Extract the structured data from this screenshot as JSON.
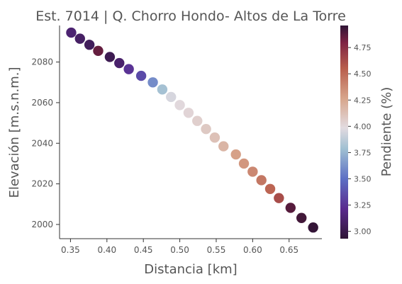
{
  "chart_data": {
    "type": "scatter",
    "title": "Est. 7014 | Q. Chorro Hondo- Altos de La Torre",
    "xlabel": "Distancia [km]",
    "ylabel": "Elevación [m.s.n.m.]",
    "xlim": [
      0.335,
      0.695
    ],
    "ylim": [
      1993,
      2098
    ],
    "xticks": [
      "0.35",
      "0.40",
      "0.45",
      "0.50",
      "0.55",
      "0.60",
      "0.65"
    ],
    "yticks": [
      "2000",
      "2020",
      "2040",
      "2060",
      "2080"
    ],
    "grid": false,
    "colorbar": {
      "label": "Pendiente (%)",
      "range": [
        2.93,
        4.96
      ],
      "ticks": [
        "3.00",
        "3.25",
        "3.50",
        "3.75",
        "4.00",
        "4.25",
        "4.50",
        "4.75"
      ],
      "colormap": "twilight_shifted"
    },
    "points": [
      {
        "x": 0.351,
        "y": 2094.5,
        "slope": 3.12
      },
      {
        "x": 0.363,
        "y": 2091.5,
        "slope": 3.08
      },
      {
        "x": 0.376,
        "y": 2088.5,
        "slope": 3.05
      },
      {
        "x": 0.388,
        "y": 2085.5,
        "slope": 4.85
      },
      {
        "x": 0.404,
        "y": 2082.5,
        "slope": 3.02
      },
      {
        "x": 0.417,
        "y": 2079.5,
        "slope": 3.1
      },
      {
        "x": 0.43,
        "y": 2076.5,
        "slope": 3.25
      },
      {
        "x": 0.447,
        "y": 2073.2,
        "slope": 3.35
      },
      {
        "x": 0.463,
        "y": 2070.0,
        "slope": 3.6
      },
      {
        "x": 0.476,
        "y": 2066.5,
        "slope": 3.8
      },
      {
        "x": 0.488,
        "y": 2062.8,
        "slope": 3.95
      },
      {
        "x": 0.5,
        "y": 2058.8,
        "slope": 4.0
      },
      {
        "x": 0.512,
        "y": 2055.0,
        "slope": 4.02
      },
      {
        "x": 0.524,
        "y": 2051.0,
        "slope": 4.05
      },
      {
        "x": 0.536,
        "y": 2047.0,
        "slope": 4.08
      },
      {
        "x": 0.548,
        "y": 2042.8,
        "slope": 4.12
      },
      {
        "x": 0.56,
        "y": 2038.5,
        "slope": 4.18
      },
      {
        "x": 0.577,
        "y": 2034.5,
        "slope": 4.28
      },
      {
        "x": 0.588,
        "y": 2030.0,
        "slope": 4.32
      },
      {
        "x": 0.6,
        "y": 2026.0,
        "slope": 4.38
      },
      {
        "x": 0.612,
        "y": 2021.8,
        "slope": 4.45
      },
      {
        "x": 0.624,
        "y": 2017.5,
        "slope": 4.52
      },
      {
        "x": 0.636,
        "y": 2013.0,
        "slope": 4.62
      },
      {
        "x": 0.652,
        "y": 2008.2,
        "slope": 4.88
      },
      {
        "x": 0.667,
        "y": 2003.2,
        "slope": 4.92
      },
      {
        "x": 0.683,
        "y": 1998.5,
        "slope": 4.95
      }
    ]
  }
}
